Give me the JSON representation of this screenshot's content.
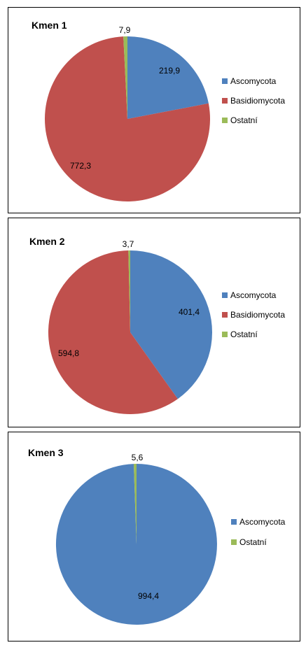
{
  "colors": {
    "Ascomycota": "#4F81BD",
    "Basidiomycota": "#C0504D",
    "Ostatní": "#9BBB59"
  },
  "chart_data": [
    {
      "type": "pie",
      "title": "Kmen 1",
      "categories": [
        "Ascomycota",
        "Basidiomycota",
        "Ostatní"
      ],
      "values": [
        219.9,
        772.3,
        7.9
      ],
      "data_labels": [
        "219,9",
        "772,3",
        "7,9"
      ],
      "legend": [
        "Ascomycota",
        "Basidiomycota",
        "Ostatní"
      ],
      "legend_position": "right"
    },
    {
      "type": "pie",
      "title": "Kmen 2",
      "categories": [
        "Ascomycota",
        "Basidiomycota",
        "Ostatní"
      ],
      "values": [
        401.4,
        594.8,
        3.7
      ],
      "data_labels": [
        "401,4",
        "594,8",
        "3,7"
      ],
      "legend": [
        "Ascomycota",
        "Basidiomycota",
        "Ostatní"
      ],
      "legend_position": "right"
    },
    {
      "type": "pie",
      "title": "Kmen 3",
      "categories": [
        "Ascomycota",
        "Ostatní"
      ],
      "values": [
        994.4,
        5.6
      ],
      "data_labels": [
        "994,4",
        "5,6"
      ],
      "legend": [
        "Ascomycota",
        "Ostatní"
      ],
      "legend_position": "right"
    }
  ]
}
